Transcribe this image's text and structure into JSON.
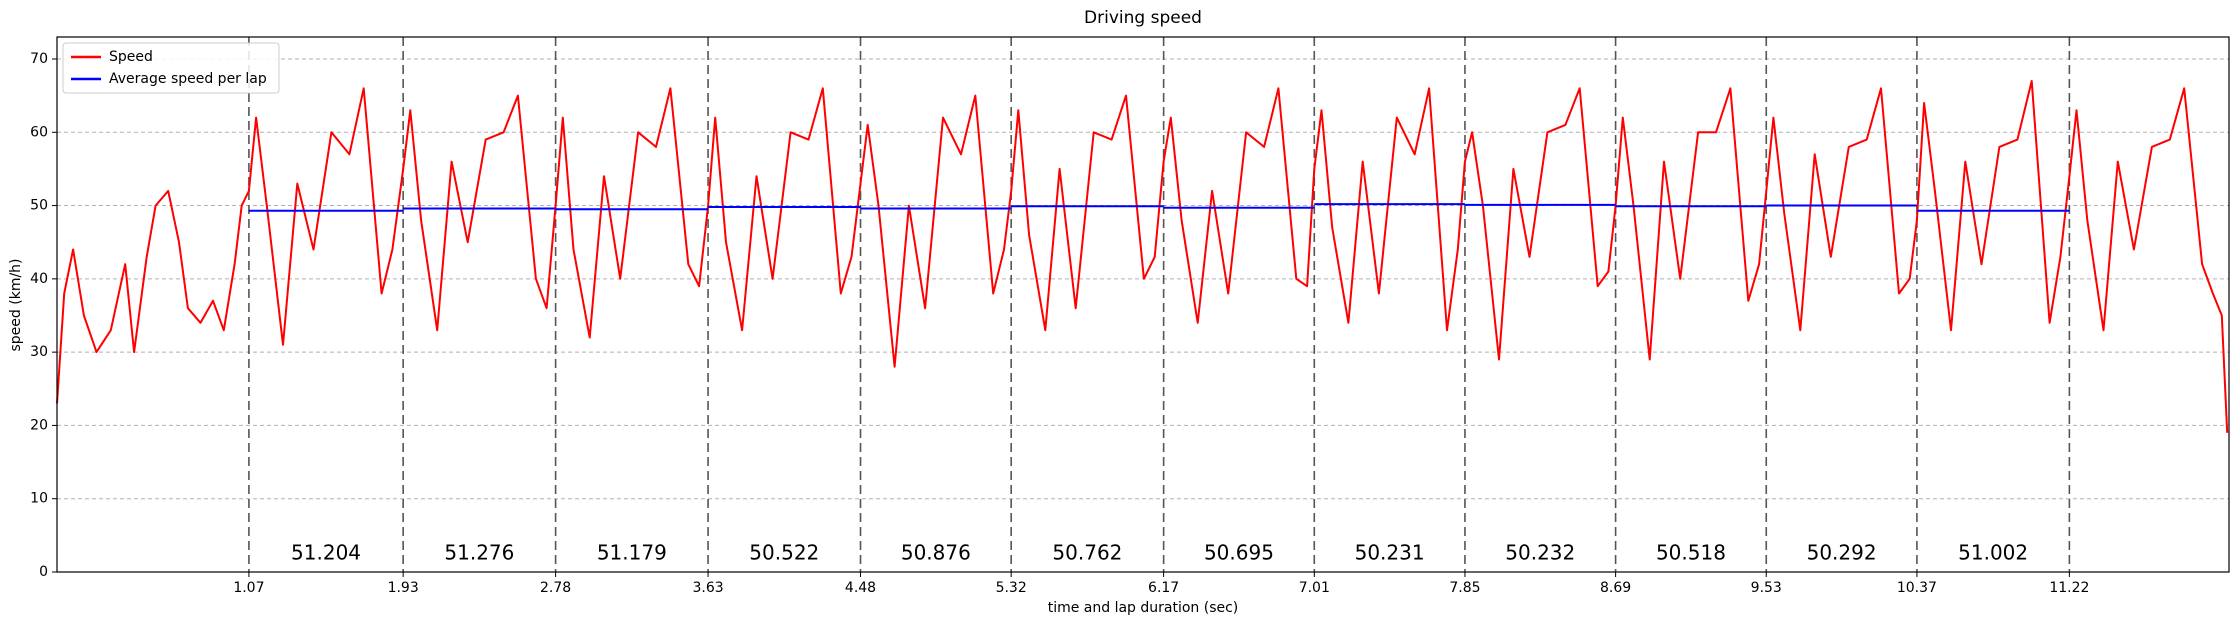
{
  "chart_data": {
    "type": "line",
    "title": "Driving speed",
    "x_label": "time and lap duration (sec)",
    "y_label": "speed (km/h)",
    "xlim": [
      0,
      12.11
    ],
    "ylim": [
      0,
      73
    ],
    "xticks": [
      1.07,
      1.93,
      2.78,
      3.63,
      4.48,
      5.32,
      6.17,
      7.01,
      7.85,
      8.69,
      9.53,
      10.37,
      11.22
    ],
    "yticks": [
      0,
      10,
      20,
      30,
      40,
      50,
      60,
      70
    ],
    "grid": true,
    "legend": "upper left",
    "series": [
      {
        "name": "Speed",
        "color": "#ff0000",
        "x": [
          0,
          0.04,
          0.09,
          0.15,
          0.22,
          0.3,
          0.38,
          0.43,
          0.5,
          0.55,
          0.62,
          0.68,
          0.73,
          0.8,
          0.87,
          0.93,
          0.99,
          1.03,
          1.07,
          1.11,
          1.17,
          1.26,
          1.34,
          1.43,
          1.53,
          1.63,
          1.71,
          1.81,
          1.87,
          1.93,
          1.97,
          2.03,
          2.12,
          2.2,
          2.29,
          2.39,
          2.49,
          2.57,
          2.67,
          2.73,
          2.78,
          2.82,
          2.88,
          2.97,
          3.05,
          3.14,
          3.24,
          3.34,
          3.42,
          3.52,
          3.58,
          3.63,
          3.67,
          3.73,
          3.82,
          3.9,
          3.99,
          4.09,
          4.19,
          4.27,
          4.37,
          4.43,
          4.48,
          4.52,
          4.58,
          4.67,
          4.75,
          4.84,
          4.94,
          5.04,
          5.12,
          5.22,
          5.28,
          5.32,
          5.36,
          5.42,
          5.51,
          5.59,
          5.68,
          5.78,
          5.88,
          5.96,
          6.06,
          6.12,
          6.17,
          6.21,
          6.27,
          6.36,
          6.44,
          6.53,
          6.63,
          6.73,
          6.81,
          6.91,
          6.97,
          7.01,
          7.05,
          7.11,
          7.2,
          7.28,
          7.37,
          7.47,
          7.57,
          7.65,
          7.75,
          7.81,
          7.85,
          7.89,
          7.95,
          8.04,
          8.12,
          8.21,
          8.31,
          8.41,
          8.49,
          8.59,
          8.65,
          8.69,
          8.73,
          8.79,
          8.88,
          8.96,
          9.05,
          9.15,
          9.25,
          9.33,
          9.43,
          9.49,
          9.53,
          9.57,
          9.63,
          9.72,
          9.8,
          9.89,
          9.99,
          10.09,
          10.17,
          10.27,
          10.33,
          10.37,
          10.41,
          10.47,
          10.56,
          10.64,
          10.73,
          10.83,
          10.93,
          11.01,
          11.11,
          11.17,
          11.22,
          11.26,
          11.32,
          11.41,
          11.49,
          11.58,
          11.68,
          11.78,
          11.86,
          11.96,
          12.02,
          12.07,
          12.1
        ],
        "values": [
          23,
          38,
          44,
          35,
          30,
          33,
          42,
          30,
          43,
          50,
          52,
          45,
          36,
          34,
          37,
          33,
          42,
          50,
          52,
          62,
          50,
          31,
          53,
          44,
          60,
          57,
          66,
          38,
          44,
          55,
          63,
          48,
          33,
          56,
          45,
          59,
          60,
          65,
          40,
          36,
          50,
          62,
          44,
          32,
          54,
          40,
          60,
          58,
          66,
          42,
          39,
          50,
          62,
          45,
          33,
          54,
          40,
          60,
          59,
          66,
          38,
          43,
          53,
          61,
          50,
          28,
          50,
          36,
          62,
          57,
          65,
          38,
          44,
          52,
          63,
          46,
          33,
          55,
          36,
          60,
          59,
          65,
          40,
          43,
          56,
          62,
          48,
          34,
          52,
          38,
          60,
          58,
          66,
          40,
          39,
          55,
          63,
          47,
          34,
          56,
          38,
          62,
          57,
          66,
          33,
          44,
          56,
          60,
          50,
          29,
          55,
          43,
          60,
          61,
          66,
          39,
          41,
          50,
          62,
          50,
          29,
          56,
          40,
          60,
          60,
          66,
          37,
          42,
          52,
          62,
          49,
          33,
          57,
          43,
          58,
          59,
          66,
          38,
          40,
          48,
          64,
          52,
          33,
          56,
          42,
          58,
          59,
          67,
          34,
          43,
          54,
          63,
          48,
          33,
          56,
          44,
          58,
          59,
          66,
          42,
          38,
          35,
          19
        ]
      },
      {
        "name": "Average speed per lap",
        "color": "#0000ff",
        "values": [
          49.3,
          49.6,
          49.5,
          49.8,
          49.6,
          49.9,
          49.7,
          50.2,
          50.1,
          49.9,
          50.0,
          49.3
        ]
      }
    ],
    "lap_durations": [
      51.204,
      51.276,
      51.179,
      50.522,
      50.876,
      50.762,
      50.695,
      50.231,
      50.232,
      50.518,
      50.292,
      51.002
    ]
  }
}
